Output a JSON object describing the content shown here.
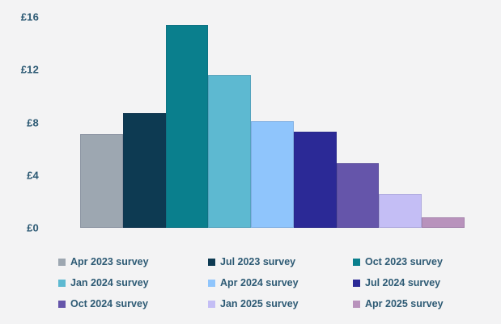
{
  "chart_data": {
    "type": "bar",
    "title": "",
    "xlabel": "",
    "ylabel": "",
    "unit": "£",
    "ylim": [
      0,
      16
    ],
    "grid": false,
    "legend_position": "bottom",
    "categories": [
      "Apr 2023 survey",
      "Jul 2023 survey",
      "Oct 2023 survey",
      "Jan 2024 survey",
      "Apr 2024 survey",
      "Jul 2024 survey",
      "Oct 2024 survey",
      "Jan 2025 survey",
      "Apr 2025 survey"
    ],
    "values": [
      7.1,
      8.7,
      15.4,
      11.6,
      8.1,
      7.3,
      4.9,
      2.6,
      0.8
    ],
    "colors": [
      "#9da7b1",
      "#0d3a52",
      "#0a7f8d",
      "#5db9d1",
      "#8fc5fc",
      "#2b2996",
      "#6555aa",
      "#c4bef5",
      "#b892bc"
    ],
    "yticks": [
      {
        "label": "£16",
        "value": 16
      },
      {
        "label": "£12",
        "value": 12
      },
      {
        "label": "£8",
        "value": 8
      },
      {
        "label": "£4",
        "value": 4
      },
      {
        "label": "£0",
        "value": 0
      }
    ]
  },
  "colors": {
    "background": "#f3f3f4",
    "text": "#2d5a74"
  }
}
